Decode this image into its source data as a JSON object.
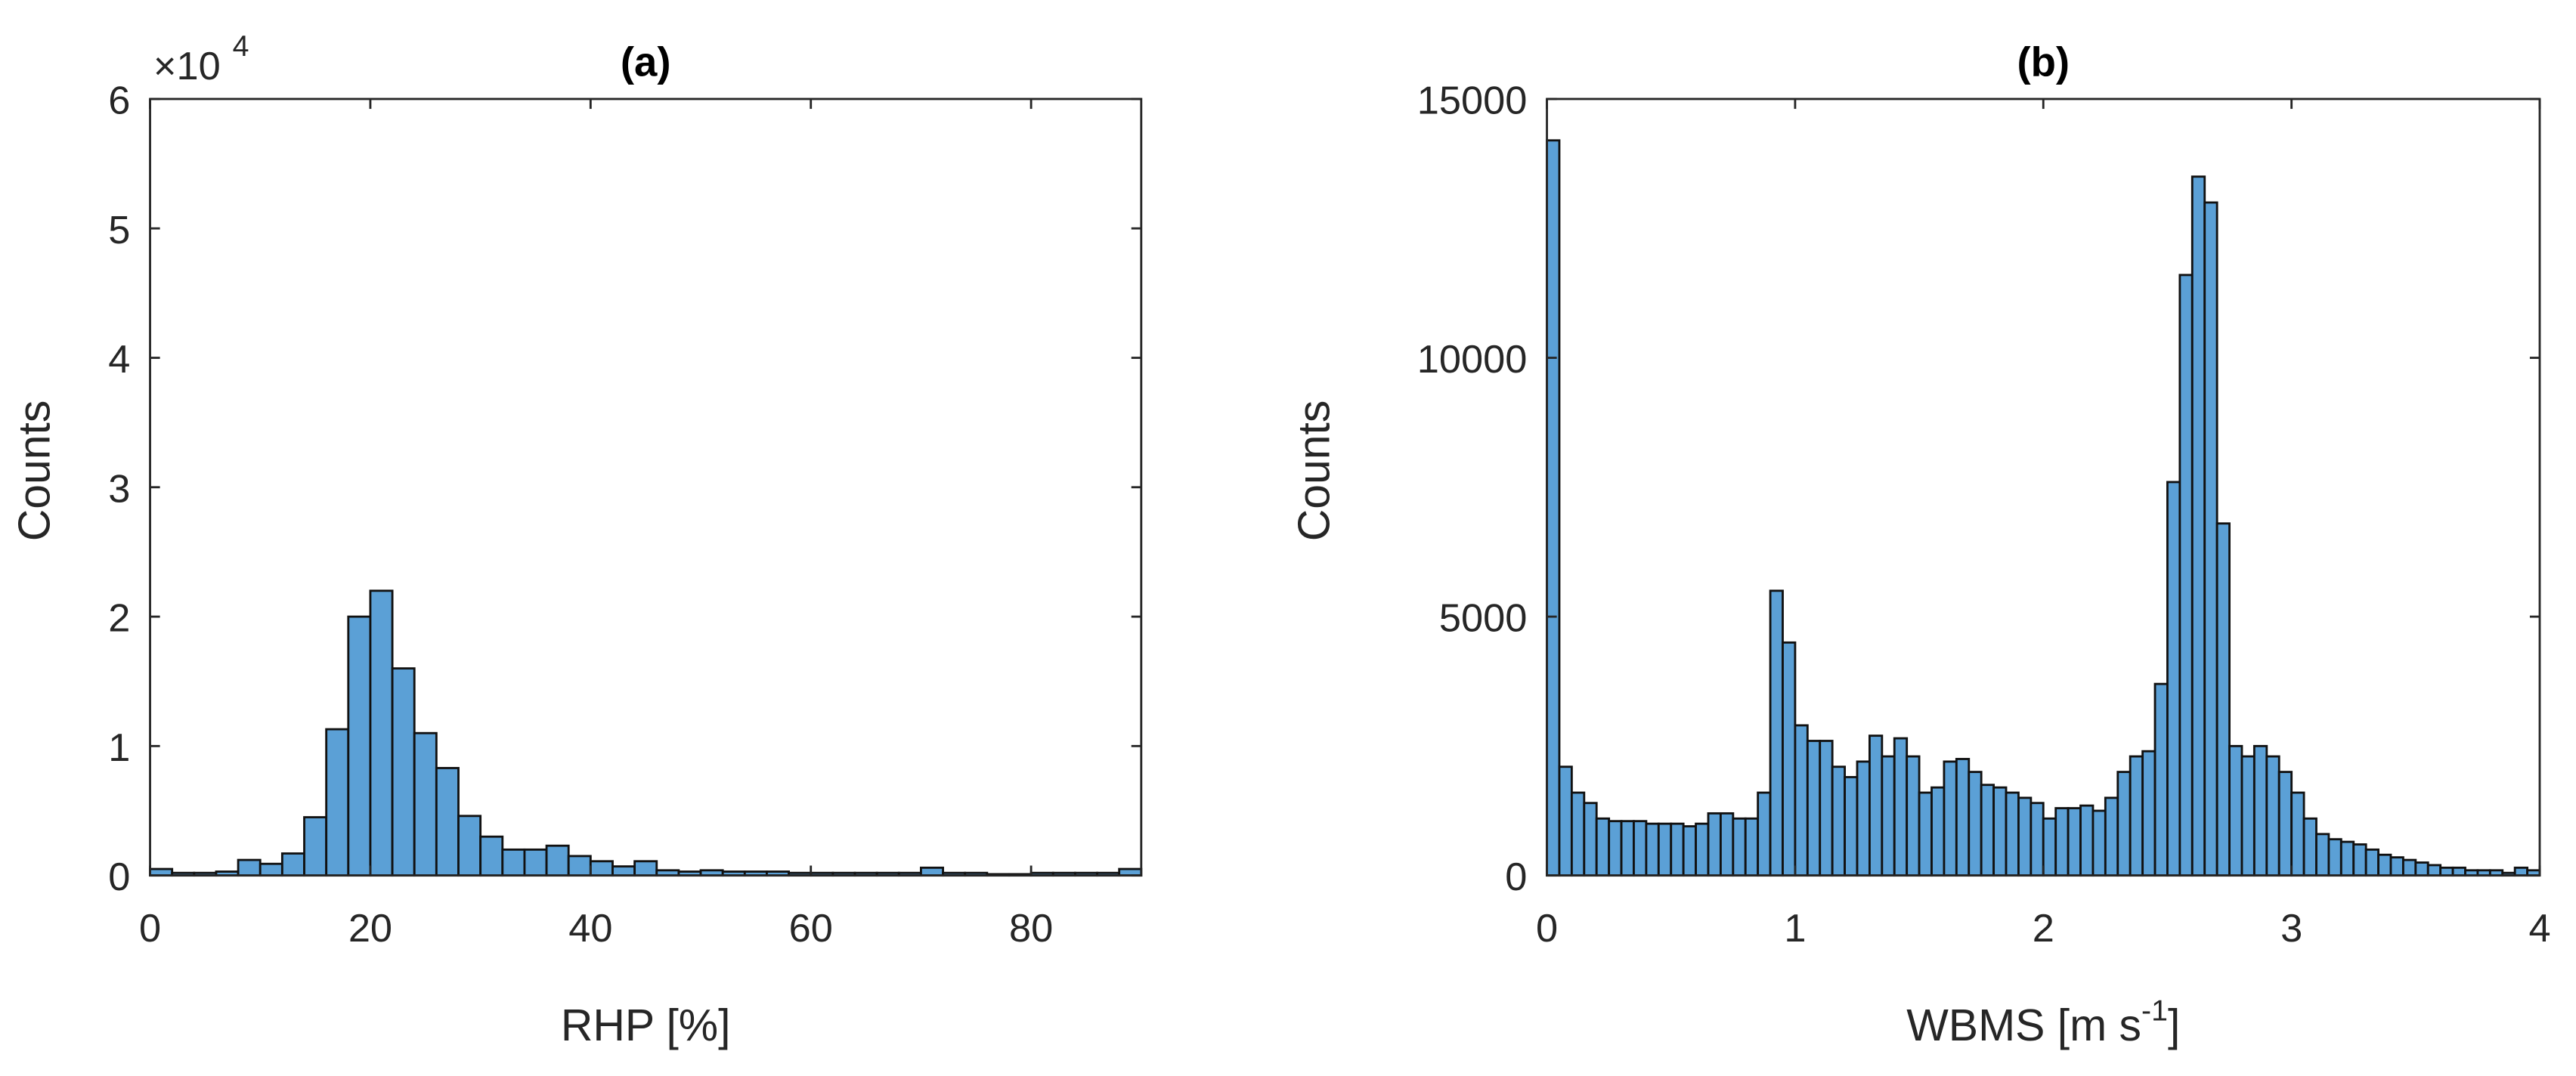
{
  "chart_data": [
    {
      "type": "histogram",
      "title": "(a)",
      "xlabel": "RHP [%]",
      "ylabel": "Counts",
      "y_multiplier": "×10",
      "y_multiplier_exponent": "4",
      "color": "#5ba0d6",
      "bins": [
        0,
        2,
        4,
        6,
        8,
        10,
        12,
        14,
        16,
        18,
        20,
        22,
        24,
        26,
        28,
        30,
        32,
        34,
        36,
        38,
        40,
        42,
        44,
        46,
        48,
        50,
        52,
        54,
        56,
        58,
        60,
        62,
        64,
        66,
        68,
        70,
        72,
        74,
        76,
        78,
        80,
        82,
        84,
        86,
        88,
        90
      ],
      "values": [
        500,
        200,
        200,
        300,
        1200,
        900,
        1700,
        4500,
        11300,
        20000,
        22000,
        16000,
        11000,
        8300,
        4600,
        3000,
        2000,
        2000,
        2300,
        1500,
        1100,
        700,
        1100,
        400,
        300,
        400,
        300,
        300,
        300,
        200,
        200,
        200,
        200,
        200,
        200,
        600,
        200,
        200,
        100,
        100,
        200,
        200,
        200,
        200,
        500
      ],
      "xlim": [
        0,
        90
      ],
      "xticks": [
        0,
        20,
        40,
        60,
        80
      ],
      "ylim": [
        0,
        60000
      ],
      "yticks": [
        {
          "value": 0,
          "label": "0"
        },
        {
          "value": 10000,
          "label": "1"
        },
        {
          "value": 20000,
          "label": "2"
        },
        {
          "value": 30000,
          "label": "3"
        },
        {
          "value": 40000,
          "label": "4"
        },
        {
          "value": 50000,
          "label": "5"
        },
        {
          "value": 60000,
          "label": "6"
        }
      ]
    },
    {
      "type": "histogram",
      "title": "(b)",
      "xlabel": "WBMS [m s",
      "xlabel_superscript": "-1",
      "xlabel_suffix": "]",
      "ylabel": "Counts",
      "color": "#5ba0d6",
      "bins": [
        0,
        0.05,
        0.1,
        0.15,
        0.2,
        0.25,
        0.3,
        0.35,
        0.4,
        0.45,
        0.5,
        0.55,
        0.6,
        0.65,
        0.7,
        0.75,
        0.8,
        0.85,
        0.9,
        0.95,
        1,
        1.05,
        1.1,
        1.15,
        1.2,
        1.25,
        1.3,
        1.35,
        1.4,
        1.45,
        1.5,
        1.55,
        1.6,
        1.65,
        1.7,
        1.75,
        1.8,
        1.85,
        1.9,
        1.95,
        2,
        2.05,
        2.1,
        2.15,
        2.2,
        2.25,
        2.3,
        2.35,
        2.4,
        2.45,
        2.5,
        2.55,
        2.6,
        2.65,
        2.7,
        2.75,
        2.8,
        2.85,
        2.9,
        2.95,
        3,
        3.05,
        3.1,
        3.15,
        3.2,
        3.25,
        3.3,
        3.35,
        3.4,
        3.45,
        3.5,
        3.55,
        3.6,
        3.65,
        3.7,
        3.75,
        3.8,
        3.85,
        3.9,
        3.95,
        4
      ],
      "values": [
        14200,
        2100,
        1600,
        1400,
        1100,
        1050,
        1050,
        1050,
        1000,
        1000,
        1000,
        950,
        1000,
        1200,
        1200,
        1100,
        1100,
        1600,
        5500,
        4500,
        2900,
        2600,
        2600,
        2100,
        1900,
        2200,
        2700,
        2300,
        2650,
        2300,
        1600,
        1700,
        2200,
        2250,
        2000,
        1750,
        1700,
        1600,
        1500,
        1400,
        1100,
        1300,
        1300,
        1350,
        1250,
        1500,
        2000,
        2300,
        2400,
        3700,
        7600,
        11600,
        13500,
        13000,
        6800,
        2500,
        2300,
        2500,
        2300,
        2000,
        1600,
        1100,
        800,
        700,
        650,
        600,
        500,
        400,
        350,
        300,
        250,
        200,
        150,
        150,
        100,
        100,
        100,
        50,
        150,
        100
      ],
      "xlim": [
        0,
        4
      ],
      "xticks": [
        0,
        1,
        2,
        3,
        4
      ],
      "ylim": [
        0,
        15000
      ],
      "yticks": [
        0,
        5000,
        10000,
        15000
      ]
    }
  ]
}
